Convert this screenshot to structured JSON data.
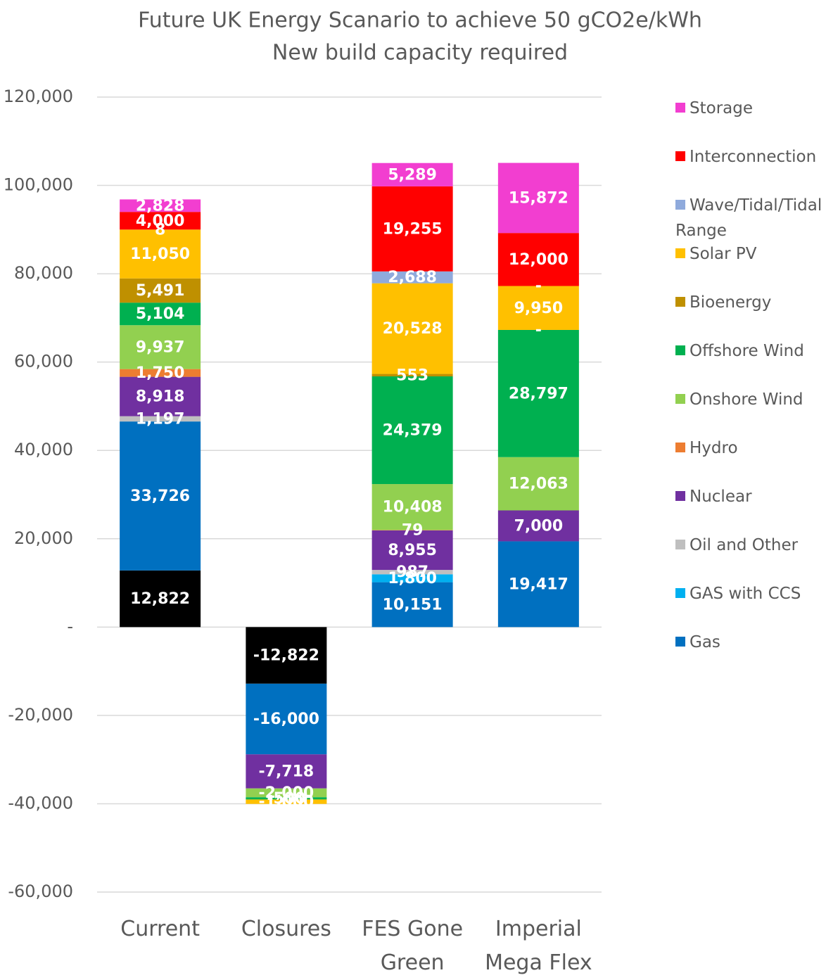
{
  "chart_data": {
    "type": "bar",
    "stacked": true,
    "title": "Future UK Energy Scanario to achieve 50 gCO2e/kWh",
    "subtitle": "New build capacity required",
    "categories": [
      "Current",
      "Closures",
      "FES Gone Green",
      "Imperial Mega Flex"
    ],
    "ylim": [
      -60000,
      120000
    ],
    "yticks": [
      {
        "value": -60000,
        "label": "-60,000"
      },
      {
        "value": -40000,
        "label": "-40,000"
      },
      {
        "value": -20000,
        "label": "-20,000"
      },
      {
        "value": 0,
        "label": "-"
      },
      {
        "value": 20000,
        "label": "20,000"
      },
      {
        "value": 40000,
        "label": "40,000"
      },
      {
        "value": 60000,
        "label": "60,000"
      },
      {
        "value": 80000,
        "label": "80,000"
      },
      {
        "value": 100000,
        "label": "100,000"
      },
      {
        "value": 120000,
        "label": "120,000"
      }
    ],
    "grid": true,
    "legend": "right",
    "series": [
      {
        "name": null,
        "color": "#000000",
        "values": [
          12822,
          -12822,
          null,
          null
        ],
        "value_labels": [
          "12,822",
          "-12,822",
          null,
          null
        ]
      },
      {
        "name": "Gas",
        "color": "#0070c0",
        "values": [
          33726,
          -16000,
          10151,
          19417
        ],
        "value_labels": [
          "33,726",
          "-16,000",
          "10,151",
          "19,417"
        ]
      },
      {
        "name": "GAS with CCS",
        "color": "#00b0f0",
        "values": [
          null,
          null,
          1800,
          null
        ],
        "value_labels": [
          null,
          null,
          "1,800",
          null
        ]
      },
      {
        "name": "Oil and Other",
        "color": "#bfbfbf",
        "values": [
          1197,
          null,
          987,
          null
        ],
        "value_labels": [
          "1,197",
          null,
          "987",
          null
        ]
      },
      {
        "name": "Nuclear",
        "color": "#7030a0",
        "values": [
          8918,
          -7718,
          8955,
          7000
        ],
        "value_labels": [
          "8,918",
          "-7,718",
          "8,955",
          "7,000"
        ]
      },
      {
        "name": "Hydro",
        "color": "#ed7d31",
        "values": [
          1750,
          null,
          79,
          null
        ],
        "value_labels": [
          "1,750",
          null,
          "79",
          null
        ]
      },
      {
        "name": "Onshore Wind",
        "color": "#92d050",
        "values": [
          9937,
          -2000,
          10408,
          12063
        ],
        "value_labels": [
          "9,937",
          "-2,000",
          "10,408",
          "12,063"
        ]
      },
      {
        "name": "Offshore Wind",
        "color": "#00b050",
        "values": [
          5104,
          -500,
          24379,
          28797
        ],
        "value_labels": [
          "5,104",
          "-500",
          "24,379",
          "28,797"
        ]
      },
      {
        "name": "Bioenergy",
        "color": "#bf9000",
        "values": [
          5491,
          null,
          553,
          0
        ],
        "value_labels": [
          "5,491",
          null,
          "553",
          "-"
        ]
      },
      {
        "name": "Solar PV",
        "color": "#ffc000",
        "values": [
          11050,
          -1000,
          20528,
          9950
        ],
        "value_labels": [
          "11,050",
          "-1,000",
          "20,528",
          "9,950"
        ]
      },
      {
        "name": "Wave/Tidal/Tidal Range",
        "color": "#8faadc",
        "values": [
          8,
          null,
          2688,
          0
        ],
        "value_labels": [
          "8",
          null,
          "2,688",
          "-"
        ]
      },
      {
        "name": "Interconnection",
        "color": "#ff0000",
        "values": [
          4000,
          null,
          19255,
          12000
        ],
        "value_labels": [
          "4,000",
          null,
          "19,255",
          "12,000"
        ]
      },
      {
        "name": "Storage",
        "color": "#f23ed0",
        "values": [
          2828,
          null,
          5289,
          15872
        ],
        "value_labels": [
          "2,828",
          null,
          "5,289",
          "15,872"
        ]
      }
    ]
  }
}
